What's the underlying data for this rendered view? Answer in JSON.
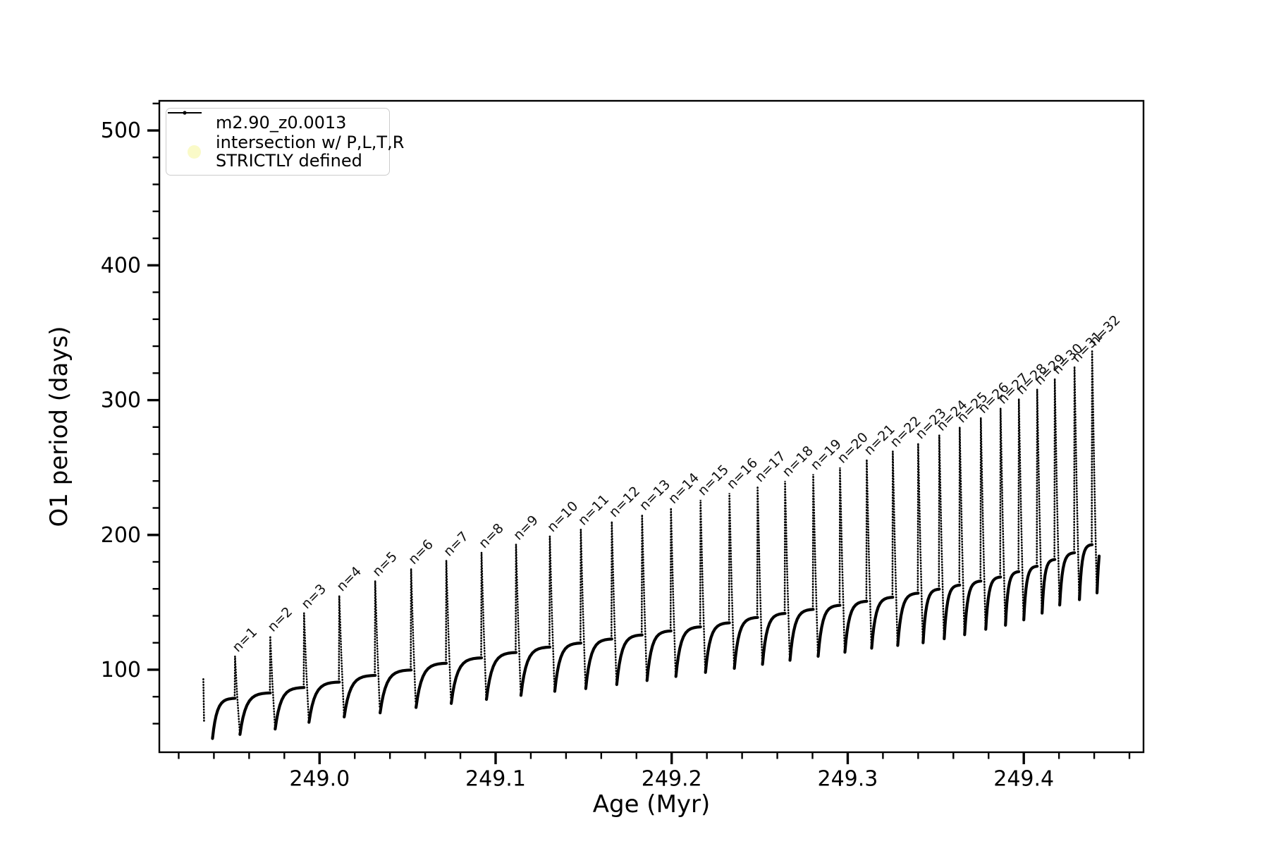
{
  "legend": {
    "series_label": "m2.90_z0.0013",
    "intersection_label_line1": "intersection w/ P,L,T,R",
    "intersection_label_line2": "STRICTLY defined"
  },
  "colors": {
    "line": "#000000",
    "intersection_marker": "#fafac8",
    "legend_border": "#cccccc",
    "background": "#ffffff"
  },
  "chart_data": {
    "type": "line",
    "title": "",
    "xlabel": "Age (Myr)",
    "ylabel": "O1 period (days)",
    "series_label": "m2.90_z0.0013",
    "legend_position": "upper-left",
    "grid": false,
    "xlim": [
      248.909,
      249.468
    ],
    "ylim": [
      38.8,
      522
    ],
    "x_ticks": [
      {
        "v": 249.0,
        "label": "249.0"
      },
      {
        "v": 249.1,
        "label": "249.1"
      },
      {
        "v": 249.2,
        "label": "249.2"
      },
      {
        "v": 249.3,
        "label": "249.3"
      },
      {
        "v": 249.4,
        "label": "249.4"
      }
    ],
    "y_ticks": [
      {
        "v": 100,
        "label": "100"
      },
      {
        "v": 200,
        "label": "200"
      },
      {
        "v": 300,
        "label": "300"
      },
      {
        "v": 400,
        "label": "400"
      },
      {
        "v": 500,
        "label": "500"
      }
    ],
    "x_minor": {
      "start": 248.92,
      "step": 0.02,
      "end": 249.46
    },
    "y_minor": {
      "start": 60,
      "step": 20,
      "end": 520
    },
    "start": {
      "age": 248.934,
      "value": 93,
      "dip": 49
    },
    "end": {
      "age": 249.4428,
      "value": 184,
      "virtual_age": 249.449,
      "virtual_plateau": 205
    },
    "pulses": [
      {
        "n": 1,
        "label": "n=1",
        "age": 248.952,
        "peak": 110,
        "plateau": 79,
        "dip": 52
      },
      {
        "n": 2,
        "label": "n=2",
        "age": 248.972,
        "peak": 125,
        "plateau": 83,
        "dip": 56
      },
      {
        "n": 3,
        "label": "n=3",
        "age": 248.9912,
        "peak": 142,
        "plateau": 87,
        "dip": 61
      },
      {
        "n": 4,
        "label": "n=4",
        "age": 249.0112,
        "peak": 155,
        "plateau": 91,
        "dip": 65
      },
      {
        "n": 5,
        "label": "n=5",
        "age": 249.0316,
        "peak": 166,
        "plateau": 96,
        "dip": 68
      },
      {
        "n": 6,
        "label": "n=6",
        "age": 249.052,
        "peak": 175,
        "plateau": 100,
        "dip": 72
      },
      {
        "n": 7,
        "label": "n=7",
        "age": 249.072,
        "peak": 181,
        "plateau": 105,
        "dip": 75
      },
      {
        "n": 8,
        "label": "n=8",
        "age": 249.092,
        "peak": 187,
        "plateau": 109,
        "dip": 78
      },
      {
        "n": 9,
        "label": "n=9",
        "age": 249.1116,
        "peak": 193,
        "plateau": 113,
        "dip": 81
      },
      {
        "n": 10,
        "label": "n=10",
        "age": 249.1308,
        "peak": 199,
        "plateau": 117,
        "dip": 84
      },
      {
        "n": 11,
        "label": "n=11",
        "age": 249.1484,
        "peak": 204,
        "plateau": 120,
        "dip": 86
      },
      {
        "n": 12,
        "label": "n=12",
        "age": 249.166,
        "peak": 210,
        "plateau": 123,
        "dip": 89
      },
      {
        "n": 13,
        "label": "n=13",
        "age": 249.1832,
        "peak": 215,
        "plateau": 126,
        "dip": 92
      },
      {
        "n": 14,
        "label": "n=14",
        "age": 249.1996,
        "peak": 220,
        "plateau": 129,
        "dip": 95
      },
      {
        "n": 15,
        "label": "n=15",
        "age": 249.2164,
        "peak": 226,
        "plateau": 132,
        "dip": 98
      },
      {
        "n": 16,
        "label": "n=16",
        "age": 249.2328,
        "peak": 231,
        "plateau": 135,
        "dip": 101
      },
      {
        "n": 17,
        "label": "n=17",
        "age": 249.2488,
        "peak": 236,
        "plateau": 139,
        "dip": 104
      },
      {
        "n": 18,
        "label": "n=18",
        "age": 249.2644,
        "peak": 240,
        "plateau": 142,
        "dip": 107
      },
      {
        "n": 19,
        "label": "n=19",
        "age": 249.2804,
        "peak": 245,
        "plateau": 145,
        "dip": 110
      },
      {
        "n": 20,
        "label": "n=20",
        "age": 249.2956,
        "peak": 250,
        "plateau": 148,
        "dip": 113
      },
      {
        "n": 21,
        "label": "n=21",
        "age": 249.3108,
        "peak": 256,
        "plateau": 151,
        "dip": 116
      },
      {
        "n": 22,
        "label": "n=22",
        "age": 249.3256,
        "peak": 262,
        "plateau": 154,
        "dip": 118
      },
      {
        "n": 23,
        "label": "n=23",
        "age": 249.34,
        "peak": 268,
        "plateau": 157,
        "dip": 120
      },
      {
        "n": 24,
        "label": "n=24",
        "age": 249.352,
        "peak": 274,
        "plateau": 160,
        "dip": 123
      },
      {
        "n": 25,
        "label": "n=25",
        "age": 249.3636,
        "peak": 280,
        "plateau": 163,
        "dip": 126
      },
      {
        "n": 26,
        "label": "n=26",
        "age": 249.3756,
        "peak": 287,
        "plateau": 166,
        "dip": 130
      },
      {
        "n": 27,
        "label": "n=27",
        "age": 249.3868,
        "peak": 294,
        "plateau": 169,
        "dip": 133
      },
      {
        "n": 28,
        "label": "n=28",
        "age": 249.3972,
        "peak": 301,
        "plateau": 173,
        "dip": 137
      },
      {
        "n": 29,
        "label": "n=29",
        "age": 249.4076,
        "peak": 308,
        "plateau": 177,
        "dip": 142
      },
      {
        "n": 30,
        "label": "n=30",
        "age": 249.4176,
        "peak": 316,
        "plateau": 182,
        "dip": 148
      },
      {
        "n": 31,
        "label": "n=31",
        "age": 249.4288,
        "peak": 325,
        "plateau": 187,
        "dip": 152
      },
      {
        "n": 32,
        "label": "n=32",
        "age": 249.4388,
        "peak": 337,
        "plateau": 193,
        "dip": 157
      }
    ]
  }
}
